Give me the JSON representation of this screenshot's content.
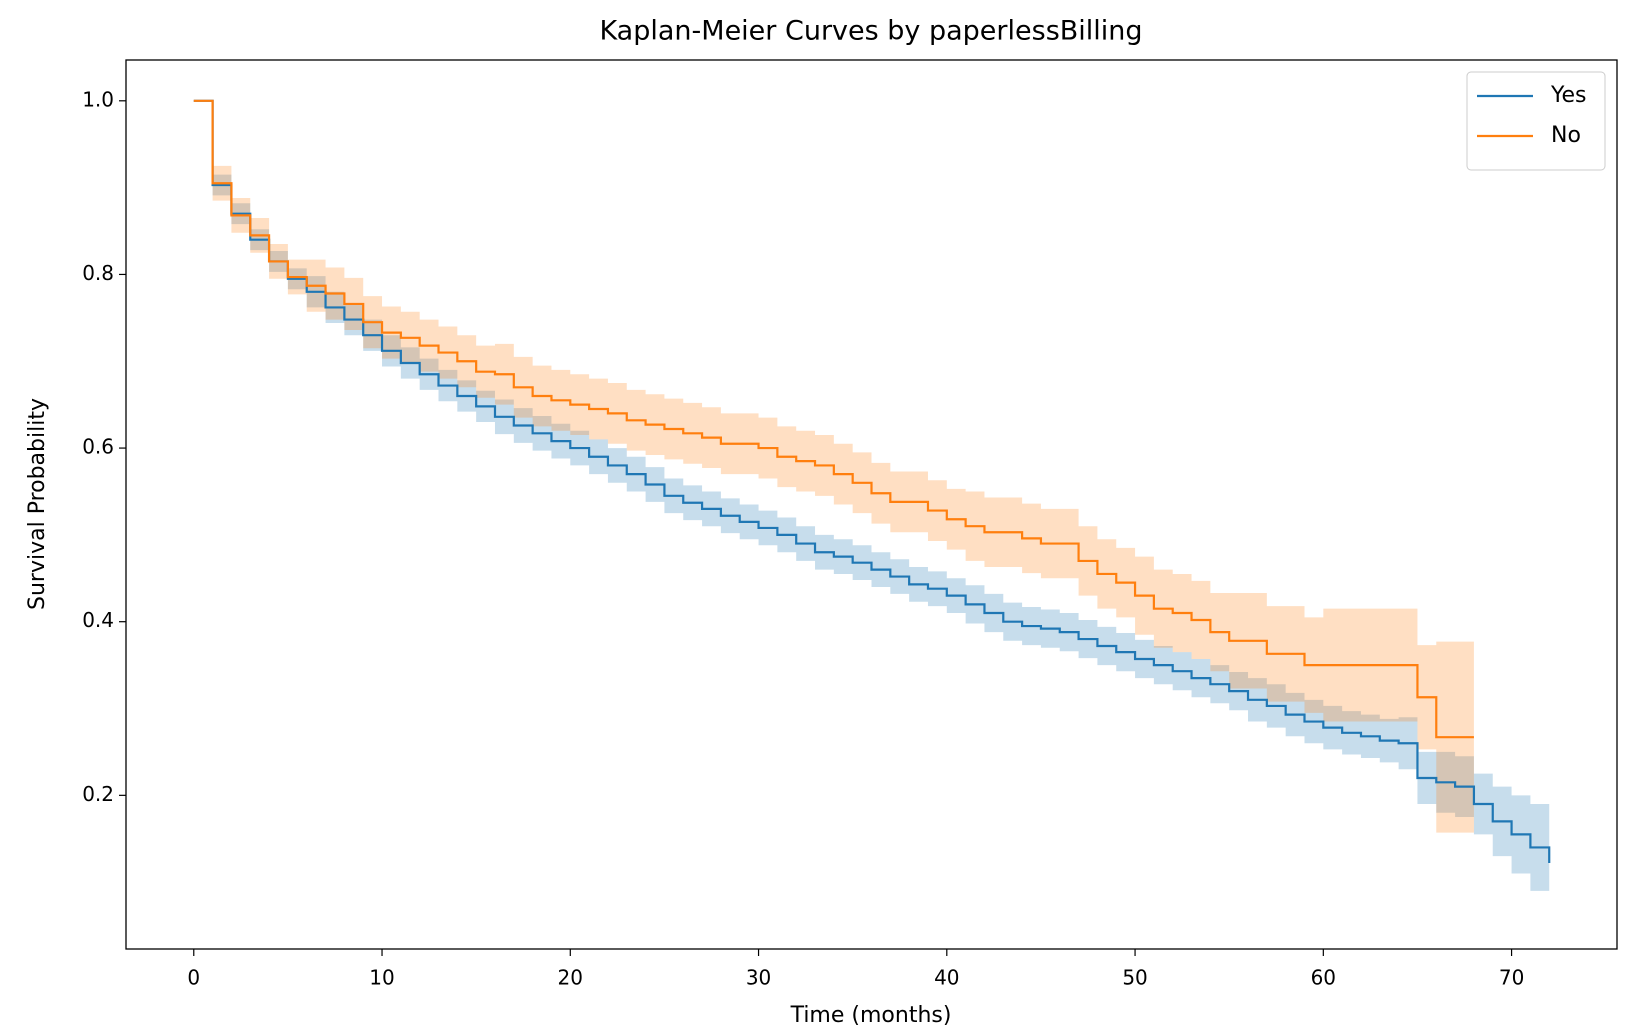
{
  "chart_data": {
    "type": "step",
    "title": "Kaplan-Meier Curves by paperlessBilling",
    "xlabel": "Time (months)",
    "ylabel": "Survival Probability",
    "x": [
      0,
      1,
      2,
      3,
      4,
      5,
      6,
      7,
      8,
      9,
      10,
      11,
      12,
      13,
      14,
      15,
      16,
      17,
      18,
      19,
      20,
      21,
      22,
      23,
      24,
      25,
      26,
      27,
      28,
      29,
      30,
      31,
      32,
      33,
      34,
      35,
      36,
      37,
      38,
      39,
      40,
      41,
      42,
      43,
      44,
      45,
      46,
      47,
      48,
      49,
      50,
      51,
      52,
      53,
      54,
      55,
      56,
      57,
      58,
      59,
      60,
      61,
      62,
      63,
      64,
      65,
      66,
      67,
      68,
      69,
      70,
      71,
      72
    ],
    "series": [
      {
        "name": "Yes",
        "color": "#1f77b4",
        "values": [
          1.0,
          0.903,
          0.87,
          0.84,
          0.815,
          0.795,
          0.78,
          0.762,
          0.748,
          0.73,
          0.712,
          0.698,
          0.685,
          0.672,
          0.66,
          0.648,
          0.636,
          0.626,
          0.617,
          0.608,
          0.6,
          0.59,
          0.58,
          0.57,
          0.558,
          0.545,
          0.537,
          0.53,
          0.522,
          0.515,
          0.508,
          0.5,
          0.49,
          0.48,
          0.475,
          0.468,
          0.46,
          0.452,
          0.443,
          0.438,
          0.43,
          0.42,
          0.41,
          0.4,
          0.395,
          0.392,
          0.388,
          0.38,
          0.372,
          0.365,
          0.357,
          0.35,
          0.343,
          0.335,
          0.328,
          0.32,
          0.31,
          0.303,
          0.293,
          0.285,
          0.278,
          0.272,
          0.268,
          0.263,
          0.26,
          0.22,
          0.215,
          0.21,
          0.19,
          0.17,
          0.155,
          0.14,
          0.122
        ],
        "lower": [
          1.0,
          0.891,
          0.858,
          0.828,
          0.803,
          0.783,
          0.762,
          0.744,
          0.73,
          0.712,
          0.694,
          0.68,
          0.667,
          0.654,
          0.642,
          0.63,
          0.616,
          0.606,
          0.597,
          0.588,
          0.58,
          0.57,
          0.56,
          0.55,
          0.538,
          0.525,
          0.517,
          0.51,
          0.502,
          0.495,
          0.488,
          0.48,
          0.47,
          0.46,
          0.455,
          0.448,
          0.44,
          0.432,
          0.423,
          0.418,
          0.41,
          0.398,
          0.388,
          0.378,
          0.373,
          0.37,
          0.366,
          0.358,
          0.35,
          0.343,
          0.335,
          0.328,
          0.321,
          0.313,
          0.306,
          0.298,
          0.285,
          0.278,
          0.268,
          0.26,
          0.253,
          0.247,
          0.243,
          0.238,
          0.23,
          0.19,
          0.18,
          0.175,
          0.155,
          0.13,
          0.11,
          0.09,
          0.067
        ],
        "upper": [
          1.0,
          0.915,
          0.882,
          0.852,
          0.827,
          0.807,
          0.798,
          0.78,
          0.766,
          0.748,
          0.73,
          0.716,
          0.703,
          0.69,
          0.678,
          0.666,
          0.656,
          0.646,
          0.637,
          0.628,
          0.62,
          0.61,
          0.6,
          0.59,
          0.578,
          0.565,
          0.557,
          0.55,
          0.542,
          0.535,
          0.528,
          0.52,
          0.51,
          0.5,
          0.495,
          0.488,
          0.48,
          0.472,
          0.463,
          0.458,
          0.45,
          0.442,
          0.432,
          0.422,
          0.417,
          0.414,
          0.41,
          0.402,
          0.394,
          0.387,
          0.379,
          0.372,
          0.365,
          0.357,
          0.35,
          0.342,
          0.335,
          0.328,
          0.318,
          0.31,
          0.303,
          0.297,
          0.293,
          0.288,
          0.29,
          0.25,
          0.25,
          0.245,
          0.225,
          0.21,
          0.2,
          0.19,
          0.177
        ]
      },
      {
        "name": "No",
        "color": "#ff7f0e",
        "values": [
          1.0,
          0.905,
          0.868,
          0.845,
          0.815,
          0.797,
          0.787,
          0.778,
          0.766,
          0.745,
          0.733,
          0.727,
          0.718,
          0.71,
          0.7,
          0.688,
          0.685,
          0.67,
          0.66,
          0.655,
          0.65,
          0.645,
          0.64,
          0.632,
          0.627,
          0.622,
          0.617,
          0.612,
          0.605,
          0.605,
          0.6,
          0.59,
          0.585,
          0.58,
          0.57,
          0.56,
          0.548,
          0.538,
          0.538,
          0.528,
          0.518,
          0.51,
          0.503,
          0.503,
          0.496,
          0.49,
          0.49,
          0.47,
          0.455,
          0.445,
          0.43,
          0.415,
          0.41,
          0.402,
          0.388,
          0.378,
          0.378,
          0.363,
          0.363,
          0.35,
          0.35,
          0.35,
          0.35,
          0.35,
          0.35,
          0.313,
          0.267,
          0.267,
          0.267,
          null,
          null,
          null,
          null
        ],
        "lower": [
          1.0,
          0.885,
          0.848,
          0.825,
          0.795,
          0.777,
          0.757,
          0.748,
          0.736,
          0.715,
          0.703,
          0.697,
          0.688,
          0.68,
          0.67,
          0.658,
          0.65,
          0.635,
          0.625,
          0.62,
          0.615,
          0.61,
          0.605,
          0.597,
          0.592,
          0.587,
          0.582,
          0.577,
          0.57,
          0.57,
          0.565,
          0.555,
          0.55,
          0.545,
          0.535,
          0.525,
          0.513,
          0.503,
          0.503,
          0.493,
          0.483,
          0.47,
          0.463,
          0.463,
          0.456,
          0.45,
          0.45,
          0.43,
          0.415,
          0.405,
          0.385,
          0.37,
          0.365,
          0.357,
          0.343,
          0.323,
          0.323,
          0.308,
          0.308,
          0.295,
          0.285,
          0.285,
          0.285,
          0.285,
          0.285,
          0.253,
          0.157,
          0.157,
          0.157,
          null,
          null,
          null,
          null
        ],
        "upper": [
          1.0,
          0.925,
          0.888,
          0.865,
          0.835,
          0.817,
          0.817,
          0.808,
          0.796,
          0.775,
          0.763,
          0.757,
          0.748,
          0.74,
          0.73,
          0.718,
          0.72,
          0.705,
          0.695,
          0.69,
          0.685,
          0.68,
          0.675,
          0.667,
          0.662,
          0.657,
          0.652,
          0.647,
          0.64,
          0.64,
          0.635,
          0.625,
          0.62,
          0.615,
          0.605,
          0.595,
          0.583,
          0.573,
          0.573,
          0.563,
          0.553,
          0.55,
          0.543,
          0.543,
          0.536,
          0.53,
          0.53,
          0.51,
          0.495,
          0.485,
          0.475,
          0.46,
          0.455,
          0.447,
          0.433,
          0.433,
          0.433,
          0.418,
          0.418,
          0.405,
          0.415,
          0.415,
          0.415,
          0.415,
          0.415,
          0.373,
          0.377,
          0.377,
          0.377,
          null,
          null,
          null,
          null
        ]
      }
    ],
    "xlim": [
      -3.6,
      75.6
    ],
    "ylim": [
      0.023,
      1.047
    ],
    "xticks": [
      0,
      10,
      20,
      30,
      40,
      50,
      60,
      70
    ],
    "yticks": [
      0.2,
      0.4,
      0.6,
      0.8,
      {
        "value": 1.0,
        "label": "1.0"
      }
    ],
    "grid": false,
    "legend": "upper right",
    "band_opacity": 0.25
  }
}
